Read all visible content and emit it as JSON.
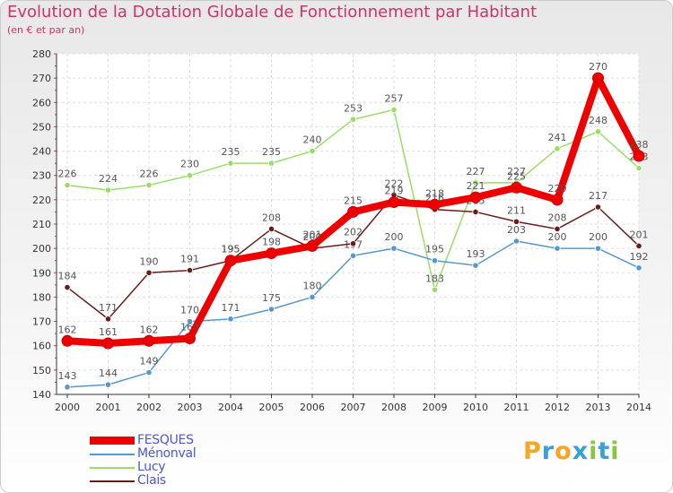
{
  "chart_data": {
    "type": "line",
    "title": "Evolution de la Dotation Globale de Fonctionnement par Habitant",
    "subtitle": "(en € et par an)",
    "x": [
      "2000",
      "2001",
      "2002",
      "2003",
      "2004",
      "2005",
      "2006",
      "2007",
      "2008",
      "2009",
      "2010",
      "2011",
      "2012",
      "2013",
      "2014"
    ],
    "ylim": [
      140,
      280
    ],
    "yticks": [
      140,
      150,
      160,
      170,
      180,
      190,
      200,
      210,
      220,
      230,
      240,
      250,
      260,
      270,
      280
    ],
    "series": [
      {
        "name": "Lucy",
        "color": "#99dd66",
        "values": [
          226,
          224,
          226,
          230,
          235,
          235,
          240,
          253,
          257,
          183,
          227,
          227,
          241,
          248,
          233
        ]
      },
      {
        "name": "Ménonval",
        "color": "#5599cc",
        "values": [
          143,
          144,
          149,
          170,
          171,
          175,
          180,
          197,
          200,
          195,
          193,
          203,
          200,
          200,
          192
        ]
      },
      {
        "name": "Clais",
        "color": "#6b1a1a",
        "values": [
          184,
          171,
          190,
          191,
          195,
          208,
          200,
          202,
          222,
          216,
          215,
          211,
          208,
          217,
          201
        ]
      },
      {
        "name": "FESQUES",
        "color": "#ee0000",
        "values": [
          162,
          161,
          162,
          163,
          195,
          198,
          201,
          215,
          219,
          218,
          221,
          225,
          220,
          270,
          238
        ]
      }
    ],
    "legend": [
      "FESQUES",
      "Ménonval",
      "Lucy",
      "Clais"
    ]
  },
  "brand": {
    "letters": [
      "P",
      "r",
      "o",
      "x",
      "i",
      "t",
      "i"
    ],
    "colors": [
      "#f5a623",
      "#3aa0d8",
      "#f5a623",
      "#3aa0d8",
      "#8cc63f",
      "#3aa0d8",
      "#8cc63f"
    ]
  }
}
